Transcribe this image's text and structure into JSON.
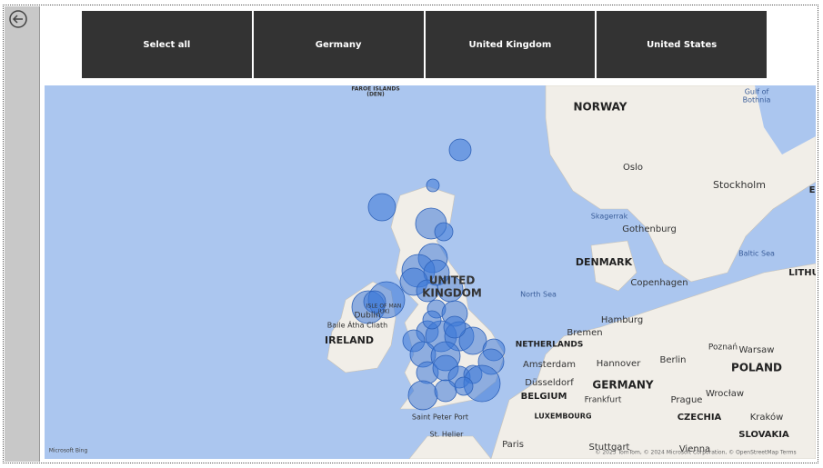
{
  "slicer": [
    "Select all",
    "Germany",
    "United Kingdom",
    "United States"
  ],
  "map": {
    "labels": [
      "FAROE ISLANDS",
      "(DEN)",
      "NORWAY",
      "Oslo",
      "Stockholm",
      "Skagerrak",
      "Gothenburg",
      "Baltic Sea",
      "DENMARK",
      "Copenhagen",
      "UNITED",
      "KINGDOM",
      "North Sea",
      "IRELAND",
      "Dublin",
      "Baile Átha Cliath",
      "ISLE OF MAN",
      "(UK)",
      "NETHERLANDS",
      "Amsterdam",
      "Bremen",
      "Hamburg",
      "Hannover",
      "Berlin",
      "Poznań",
      "Warsaw",
      "POLAND",
      "GERMANY",
      "Düsseldorf",
      "BELGIUM",
      "Frankfurt",
      "LUXEMBOURG",
      "Prague",
      "CZECHIA",
      "Wrocław",
      "Kraków",
      "SLOVAKIA",
      "Paris",
      "Stuttgart",
      "Vienna",
      "Saint Peter Port",
      "St. Helier",
      "Gulf of",
      "Bothnia",
      "LITHU",
      "E",
      "Microsoft Bing",
      "© 2023 TomTom, © 2024 Microsoft Corporation, © OpenStreetMap  Terms"
    ]
  }
}
